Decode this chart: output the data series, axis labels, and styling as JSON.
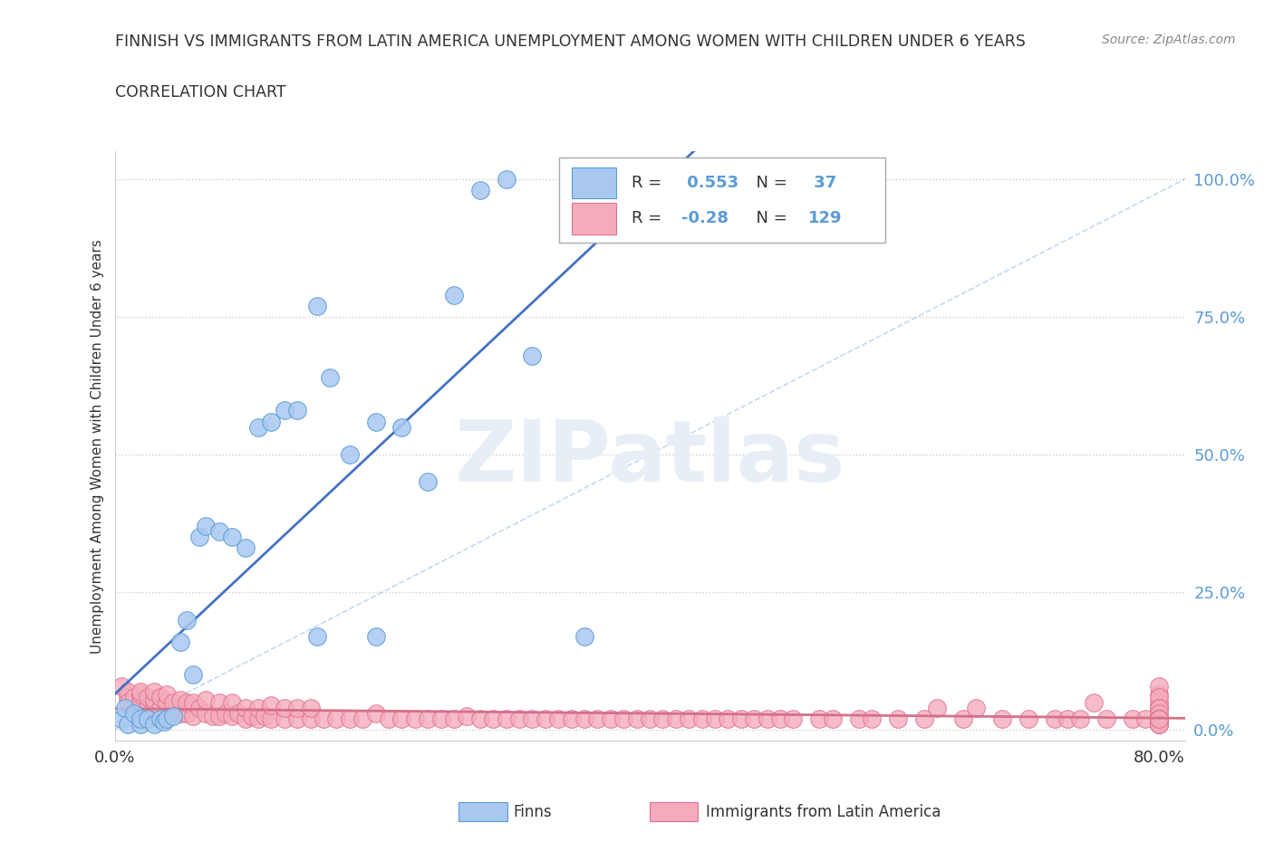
{
  "title_line1": "FINNISH VS IMMIGRANTS FROM LATIN AMERICA UNEMPLOYMENT AMONG WOMEN WITH CHILDREN UNDER 6 YEARS",
  "title_line2": "CORRELATION CHART",
  "source": "Source: ZipAtlas.com",
  "ylabel": "Unemployment Among Women with Children Under 6 years",
  "legend_finns": "Finns",
  "legend_immigrants": "Immigrants from Latin America",
  "R_finns": 0.553,
  "N_finns": 37,
  "R_immigrants": -0.28,
  "N_immigrants": 129,
  "finn_color": "#A8C8F0",
  "finn_edge_color": "#5B9BD5",
  "finn_line_color": "#4472C4",
  "immigrant_color": "#F4ACBC",
  "immigrant_edge_color": "#E07090",
  "immigrant_line_color": "#D4708A",
  "ref_line_color": "#A8C8F0",
  "watermark_color": "#E8EEF5",
  "background_color": "#ffffff",
  "text_color": "#333333",
  "axis_label_color": "#5B9BD5",
  "grid_color": "#cccccc",
  "xlim": [
    0.0,
    0.82
  ],
  "ylim": [
    -0.02,
    1.05
  ],
  "yticks": [
    0.0,
    0.25,
    0.5,
    0.75,
    1.0
  ],
  "ytick_labels": [
    "0.0%",
    "25.0%",
    "50.0%",
    "75.0%",
    "100.0%"
  ],
  "finn_x": [
    0.005,
    0.008,
    0.01,
    0.015,
    0.02,
    0.02,
    0.025,
    0.03,
    0.035,
    0.038,
    0.04,
    0.045,
    0.05,
    0.055,
    0.06,
    0.065,
    0.07,
    0.08,
    0.09,
    0.1,
    0.11,
    0.12,
    0.13,
    0.14,
    0.155,
    0.165,
    0.18,
    0.2,
    0.22,
    0.24,
    0.26,
    0.28,
    0.3,
    0.32,
    0.155,
    0.2,
    0.36
  ],
  "finn_y": [
    0.02,
    0.04,
    0.01,
    0.03,
    0.01,
    0.02,
    0.02,
    0.01,
    0.02,
    0.015,
    0.02,
    0.025,
    0.16,
    0.2,
    0.1,
    0.35,
    0.37,
    0.36,
    0.35,
    0.33,
    0.55,
    0.56,
    0.58,
    0.58,
    0.77,
    0.64,
    0.5,
    0.56,
    0.55,
    0.45,
    0.79,
    0.98,
    1.0,
    0.68,
    0.17,
    0.17,
    0.17
  ],
  "immigrant_x": [
    0.005,
    0.01,
    0.01,
    0.01,
    0.015,
    0.02,
    0.02,
    0.02,
    0.025,
    0.025,
    0.03,
    0.03,
    0.03,
    0.035,
    0.035,
    0.04,
    0.04,
    0.04,
    0.045,
    0.045,
    0.05,
    0.05,
    0.055,
    0.055,
    0.06,
    0.06,
    0.065,
    0.07,
    0.07,
    0.075,
    0.08,
    0.08,
    0.085,
    0.09,
    0.09,
    0.095,
    0.1,
    0.1,
    0.105,
    0.11,
    0.11,
    0.115,
    0.12,
    0.12,
    0.13,
    0.13,
    0.14,
    0.14,
    0.15,
    0.15,
    0.16,
    0.17,
    0.18,
    0.19,
    0.2,
    0.21,
    0.22,
    0.23,
    0.24,
    0.25,
    0.26,
    0.27,
    0.28,
    0.29,
    0.3,
    0.31,
    0.32,
    0.33,
    0.34,
    0.35,
    0.36,
    0.37,
    0.38,
    0.39,
    0.4,
    0.41,
    0.42,
    0.43,
    0.44,
    0.45,
    0.46,
    0.47,
    0.48,
    0.49,
    0.5,
    0.51,
    0.52,
    0.54,
    0.55,
    0.57,
    0.58,
    0.6,
    0.62,
    0.63,
    0.65,
    0.66,
    0.68,
    0.7,
    0.72,
    0.73,
    0.74,
    0.75,
    0.76,
    0.78,
    0.79,
    0.8,
    0.8,
    0.8,
    0.8,
    0.8,
    0.8,
    0.8,
    0.8,
    0.8,
    0.8,
    0.8,
    0.8,
    0.8,
    0.8,
    0.8,
    0.8,
    0.8,
    0.8,
    0.8,
    0.8,
    0.8,
    0.8,
    0.8,
    0.8
  ],
  "immigrant_y": [
    0.08,
    0.06,
    0.07,
    0.05,
    0.06,
    0.05,
    0.065,
    0.07,
    0.04,
    0.06,
    0.04,
    0.055,
    0.07,
    0.04,
    0.06,
    0.035,
    0.05,
    0.065,
    0.03,
    0.05,
    0.03,
    0.055,
    0.03,
    0.05,
    0.025,
    0.05,
    0.04,
    0.03,
    0.055,
    0.025,
    0.025,
    0.05,
    0.03,
    0.025,
    0.05,
    0.03,
    0.02,
    0.04,
    0.025,
    0.02,
    0.04,
    0.025,
    0.02,
    0.045,
    0.02,
    0.04,
    0.02,
    0.04,
    0.02,
    0.04,
    0.02,
    0.02,
    0.02,
    0.02,
    0.03,
    0.02,
    0.02,
    0.02,
    0.02,
    0.02,
    0.02,
    0.025,
    0.02,
    0.02,
    0.02,
    0.02,
    0.02,
    0.02,
    0.02,
    0.02,
    0.02,
    0.02,
    0.02,
    0.02,
    0.02,
    0.02,
    0.02,
    0.02,
    0.02,
    0.02,
    0.02,
    0.02,
    0.02,
    0.02,
    0.02,
    0.02,
    0.02,
    0.02,
    0.02,
    0.02,
    0.02,
    0.02,
    0.02,
    0.04,
    0.02,
    0.04,
    0.02,
    0.02,
    0.02,
    0.02,
    0.02,
    0.05,
    0.02,
    0.02,
    0.02,
    0.02,
    0.04,
    0.02,
    0.05,
    0.02,
    0.065,
    0.02,
    0.08,
    0.02,
    0.06,
    0.02,
    0.04,
    0.02,
    0.04,
    0.02,
    0.03,
    0.02,
    0.02,
    0.01,
    0.02,
    0.01,
    0.02,
    0.01,
    0.02
  ]
}
